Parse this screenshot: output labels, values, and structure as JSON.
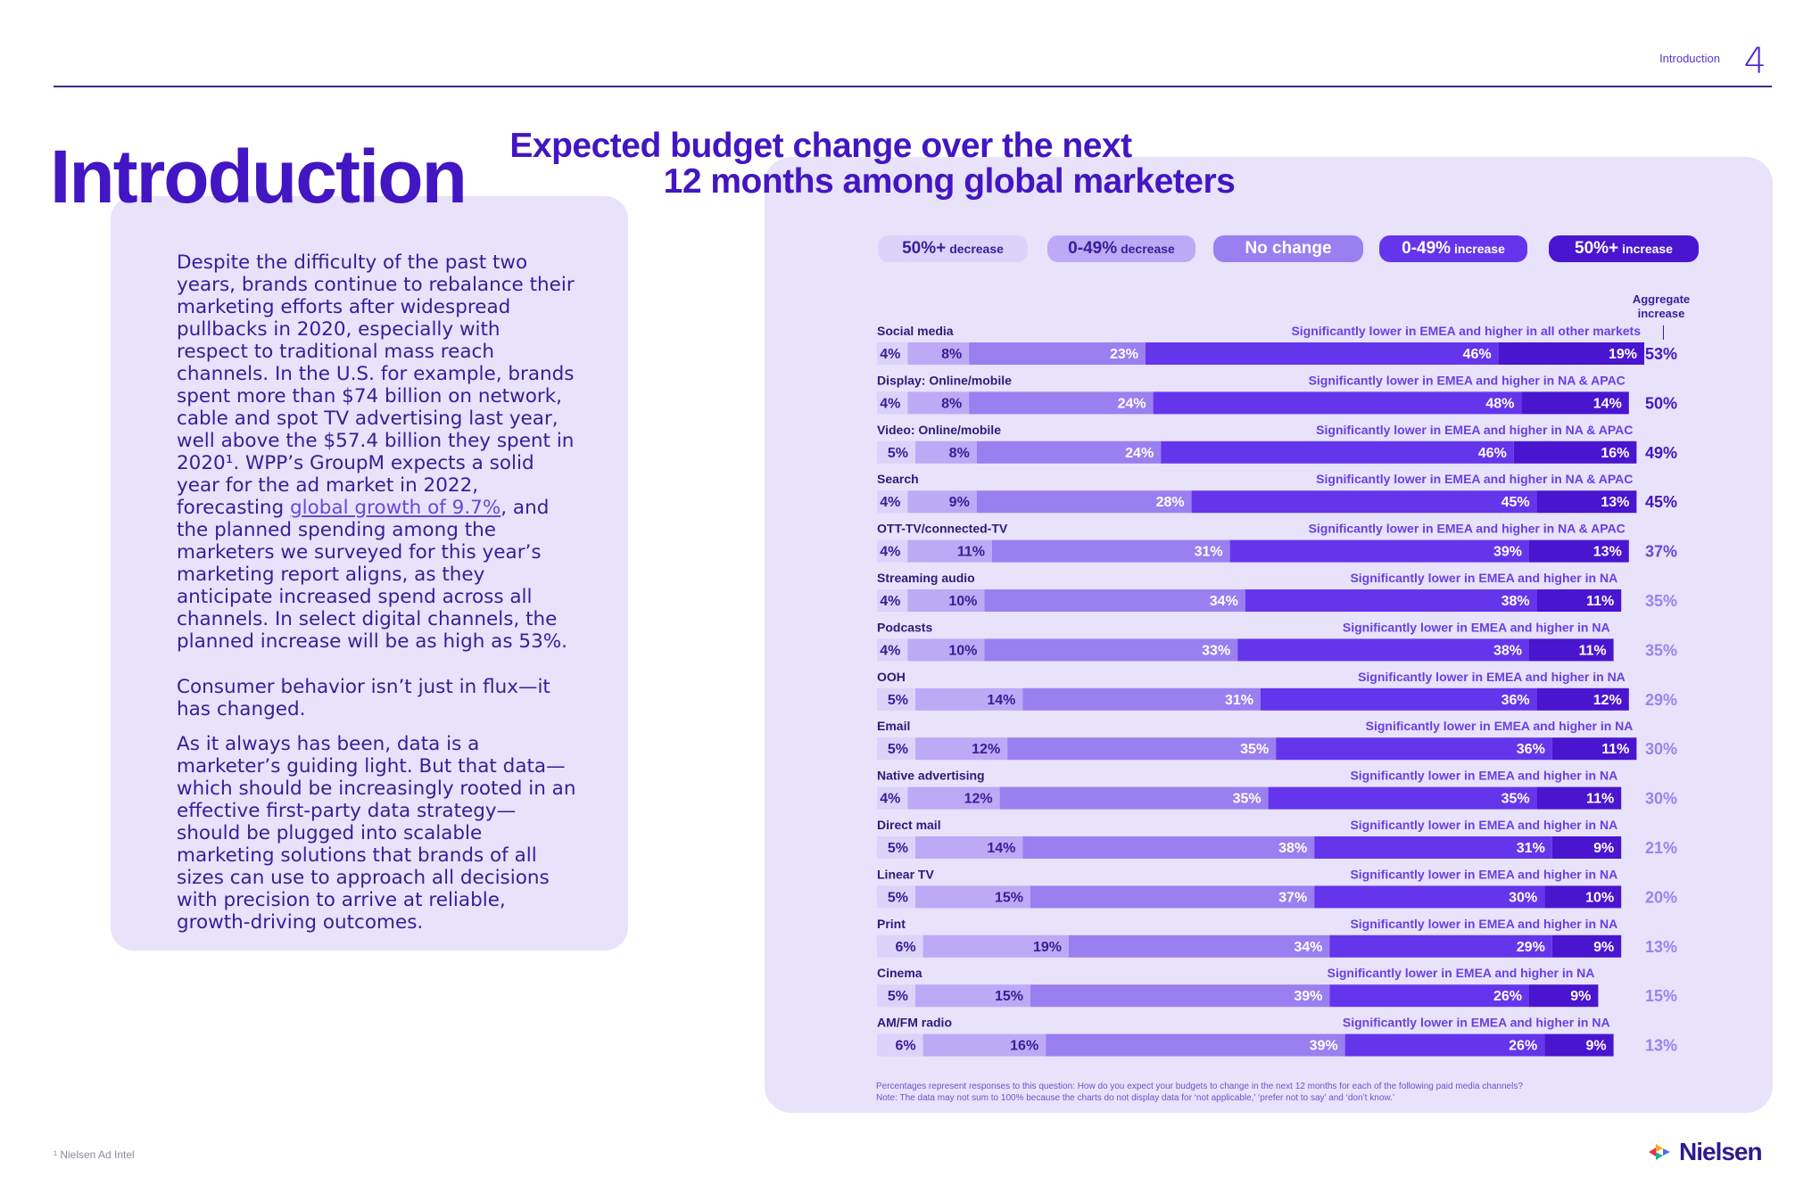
{
  "header": {
    "section": "Introduction",
    "page_number": "4"
  },
  "intro": {
    "title": "Introduction",
    "paragraph1_a": "Despite the difficulty of the past two years, brands continue to rebalance their marketing efforts after widespread pullbacks in 2020, especially with respect to traditional mass reach channels. In the U.S. for example, brands spent more than $74 billion on network, cable and spot TV advertising last year, well above the $57.4 billion they spent in 2020¹. WPP’s GroupM expects a solid year for the ad market in 2022, forecasting ",
    "paragraph1_link": "global growth of 9.7%",
    "paragraph1_b": ", and the planned spending among the marketers we surveyed for this year’s marketing report aligns, as they anticipate increased spend across all channels. In select digital channels, the planned increase will be as high as 53%.",
    "paragraph2": "Consumer behavior isn’t just in flux—it has changed.",
    "paragraph3": "As it always has been, data is a marketer’s guiding light. But that data—which should be increasingly rooted in an effective first-party data strategy—should be plugged into scalable marketing solutions that brands of all sizes can use to approach all decisions with precision to arrive at reliable, growth-driving outcomes."
  },
  "footer": {
    "footnote": "¹ Nielsen Ad Intel",
    "logo_text": "Nielsen"
  },
  "chart_data": {
    "type": "bar",
    "stacked": true,
    "orientation": "horizontal",
    "title_line1": "Expected budget change over the next",
    "title_line2": "12 months among global marketers",
    "legend": [
      {
        "big": "50%+",
        "small": "decrease",
        "color": "#dcd3fb",
        "text_color": "#3a1d96"
      },
      {
        "big": "0-49%",
        "small": "decrease",
        "color": "#bcaaf6",
        "text_color": "#3a1d96"
      },
      {
        "big": "No change",
        "small": "",
        "color": "#9a7ff0",
        "text_color": "#ffffff"
      },
      {
        "big": "0-49%",
        "small": "increase",
        "color": "#6535ec",
        "text_color": "#ffffff"
      },
      {
        "big": "50%+",
        "small": "increase",
        "color": "#4915cf",
        "text_color": "#ffffff"
      }
    ],
    "aggregate_header": "Aggregate increase",
    "categories": [
      "Social media",
      "Display: Online/mobile",
      "Video: Online/mobile",
      "Search",
      "OTT-TV/connected-TV",
      "Streaming audio",
      "Podcasts",
      "OOH",
      "Email",
      "Native advertising",
      "Direct mail",
      "Linear TV",
      "Print",
      "Cinema",
      "AM/FM radio"
    ],
    "series": [
      {
        "name": "50%+ decrease",
        "values": [
          4,
          4,
          5,
          4,
          4,
          4,
          4,
          5,
          5,
          4,
          5,
          5,
          6,
          5,
          6
        ]
      },
      {
        "name": "0-49% decrease",
        "values": [
          8,
          8,
          8,
          9,
          11,
          10,
          10,
          14,
          12,
          12,
          14,
          15,
          19,
          15,
          16
        ]
      },
      {
        "name": "No change",
        "values": [
          23,
          24,
          24,
          28,
          31,
          34,
          33,
          31,
          35,
          35,
          38,
          37,
          34,
          39,
          39
        ]
      },
      {
        "name": "0-49% increase",
        "values": [
          46,
          48,
          46,
          45,
          39,
          38,
          38,
          36,
          36,
          35,
          31,
          30,
          29,
          26,
          26
        ]
      },
      {
        "name": "50%+ increase",
        "values": [
          19,
          14,
          16,
          13,
          13,
          11,
          11,
          12,
          11,
          11,
          9,
          10,
          9,
          9,
          9
        ]
      }
    ],
    "aggregate_increase": [
      "53%",
      "50%",
      "49%",
      "45%",
      "37%",
      "35%",
      "35%",
      "29%",
      "30%",
      "30%",
      "21%",
      "20%",
      "13%",
      "15%",
      "13%"
    ],
    "annotations": [
      "Significantly lower in EMEA and higher in all other markets",
      "Significantly lower in EMEA and higher in NA & APAC",
      "Significantly lower in EMEA and higher in NA & APAC",
      "Significantly lower in EMEA and higher in NA & APAC",
      "Significantly lower in EMEA and higher in NA & APAC",
      "Significantly lower in EMEA and higher in NA",
      "Significantly lower in EMEA and higher in NA",
      "Significantly lower in EMEA and higher in NA",
      "Significantly lower in EMEA and higher in NA",
      "Significantly lower in EMEA and higher in NA",
      "Significantly lower in EMEA and higher in NA",
      "Significantly lower in EMEA and higher in NA",
      "Significantly lower in EMEA and higher in NA",
      "Significantly lower in EMEA and higher in NA",
      "Significantly lower in EMEA and higher in NA"
    ],
    "notes": [
      "Percentages represent responses to this question: How do you expect your budgets to change in the next 12 months for each of the following paid media channels?",
      "Note: The data may not sum to 100% because the charts do not display data for ‘not applicable,’ ‘prefer not to say’ and ‘don’t know.’"
    ]
  }
}
